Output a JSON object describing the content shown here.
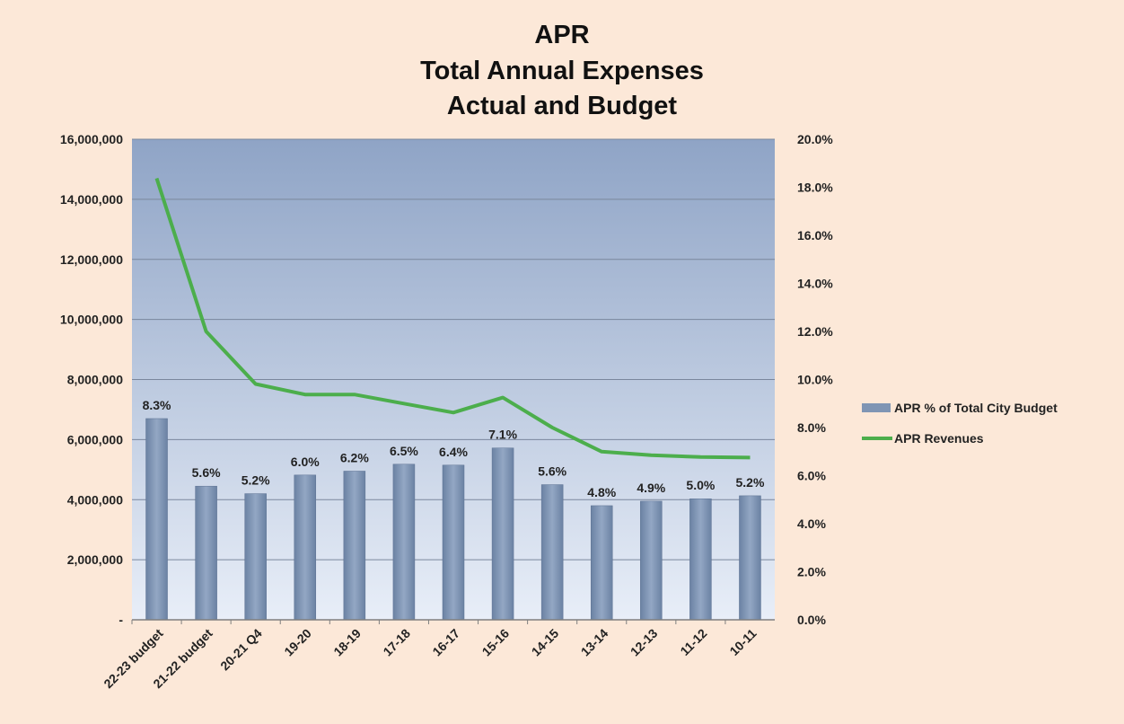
{
  "chart_data": {
    "type": "bar",
    "title": [
      "APR",
      "Total Annual Expenses",
      "Actual and Budget"
    ],
    "categories": [
      "22-23 budget",
      "21-22 budget",
      "20-21 Q4",
      "19-20",
      "18-19",
      "17-18",
      "16-17",
      "15-16",
      "14-15",
      "13-14",
      "12-13",
      "11-12",
      "10-11"
    ],
    "bar_series": {
      "name": "APR % of Total City Budget",
      "values": [
        6700000,
        4450000,
        4200000,
        4820000,
        4950000,
        5180000,
        5150000,
        5720000,
        4500000,
        3800000,
        3950000,
        4030000,
        4130000
      ],
      "data_labels": [
        "8.3%",
        "5.6%",
        "5.2%",
        "6.0%",
        "6.2%",
        "6.5%",
        "6.4%",
        "7.1%",
        "5.6%",
        "4.8%",
        "4.9%",
        "5.0%",
        "5.2%"
      ],
      "color": "#7f95b4"
    },
    "line_series": {
      "name": "APR Revenues",
      "values": [
        14700000,
        9600000,
        7850000,
        7500000,
        7500000,
        7200000,
        6900000,
        7400000,
        6400000,
        5600000,
        5480000,
        5420000,
        5400000
      ],
      "color": "#4cae4c"
    },
    "y_left": {
      "min": 0,
      "max": 16000000,
      "ticks": [
        0,
        2000000,
        4000000,
        6000000,
        8000000,
        10000000,
        12000000,
        14000000,
        16000000
      ],
      "tick_labels": [
        "-",
        "2,000,000",
        "4,000,000",
        "6,000,000",
        "8,000,000",
        "10,000,000",
        "12,000,000",
        "14,000,000",
        "16,000,000"
      ]
    },
    "y_right": {
      "min": 0,
      "max": 20,
      "tick_labels": [
        "0.0%",
        "2.0%",
        "4.0%",
        "6.0%",
        "8.0%",
        "10.0%",
        "12.0%",
        "14.0%",
        "16.0%",
        "18.0%",
        "20.0%"
      ]
    },
    "grid": true,
    "legend_position": "right",
    "colors": {
      "background": "#fce8d8",
      "plot_top": "#8fa4c6",
      "plot_bottom": "#e8eef8",
      "grid": "#7a879c"
    }
  }
}
